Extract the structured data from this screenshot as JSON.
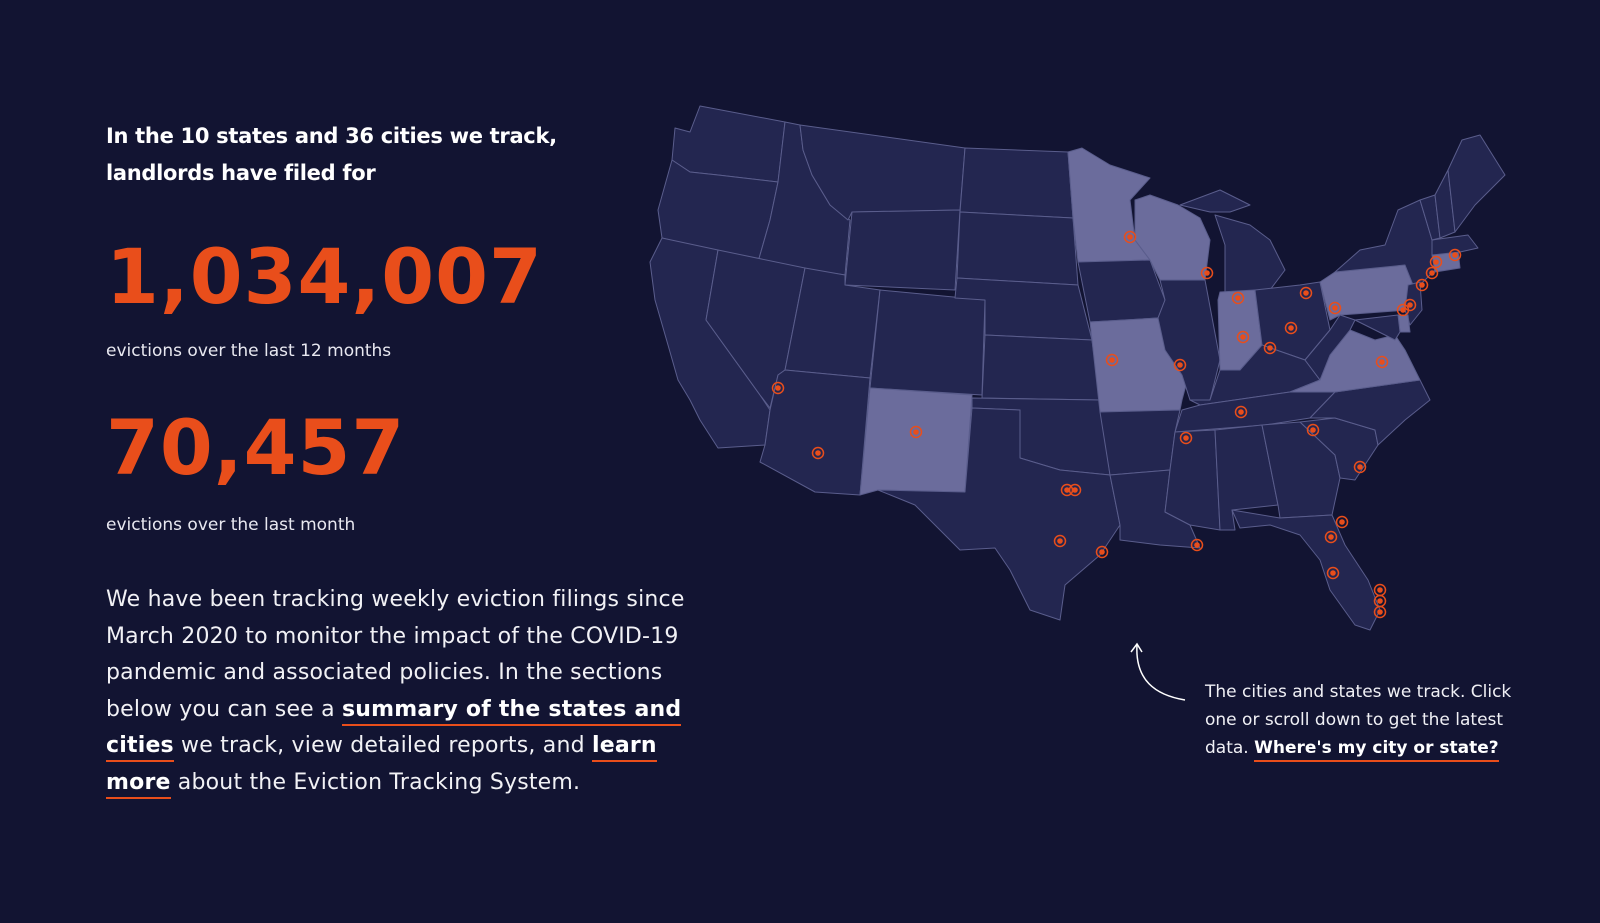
{
  "intro": {
    "headline": "In the 10 states and 36 cities we track, landlords have filed for"
  },
  "stats": [
    {
      "value": "1,034,007",
      "label": "evictions over the last 12 months"
    },
    {
      "value": "70,457",
      "label": "evictions over the last month"
    }
  ],
  "paragraph": {
    "part1": "We have been tracking weekly eviction filings since March 2020 to monitor the impact of the COVID-19 pandemic and associated policies. In the sections below you can see a ",
    "link1": "summary of the states and cities",
    "part2": " we track, view detailed reports, and ",
    "link2": "learn more",
    "part3": " about the Eviction Tracking System."
  },
  "map_caption": {
    "text": "The cities and states we track. Click one or scroll down to get the latest data. ",
    "link": "Where's my city or state?"
  },
  "colors": {
    "background": "#121432",
    "accent": "#e94e1b",
    "state_default": "#232650",
    "state_tracked": "#6b6c9c",
    "state_border": "#5a5d8c"
  },
  "map": {
    "tracked_states": [
      "Minnesota",
      "Wisconsin",
      "Indiana",
      "Missouri",
      "New Mexico",
      "Pennsylvania",
      "Virginia",
      "Connecticut",
      "Delaware",
      "South Carolina"
    ]
  }
}
